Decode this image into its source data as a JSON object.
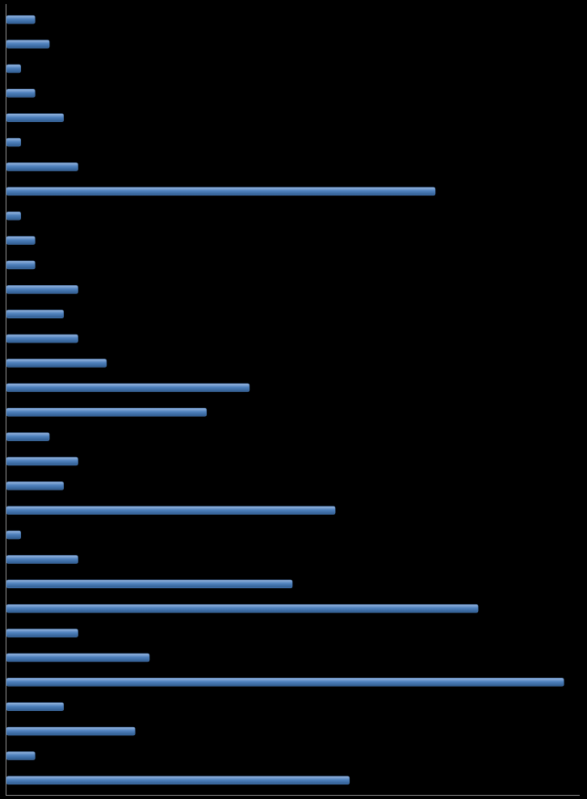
{
  "chart_data": {
    "type": "bar",
    "orientation": "horizontal",
    "categories": [
      null,
      null,
      null,
      null,
      null,
      null,
      null,
      null,
      null,
      null,
      null,
      null,
      null,
      null,
      null,
      null,
      null,
      null,
      null,
      null,
      null,
      null,
      null,
      null,
      null,
      null,
      null,
      null,
      null,
      null,
      null,
      null
    ],
    "values": [
      2,
      3,
      1,
      2,
      4,
      1,
      5,
      30,
      1,
      2,
      2,
      5,
      4,
      5,
      7,
      17,
      14,
      3,
      5,
      4,
      23,
      1,
      5,
      20,
      33,
      5,
      10,
      39,
      4,
      9,
      2,
      24
    ],
    "color": "#4f81bd",
    "xlim": [
      0,
      40
    ]
  }
}
